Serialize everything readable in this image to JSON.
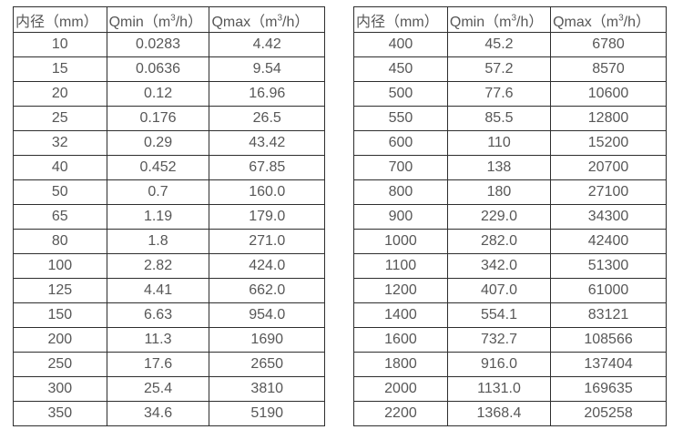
{
  "colors": {
    "background": "#ffffff",
    "border": "#2e2e2e",
    "text": "#575757"
  },
  "tables": [
    {
      "name": "flow-rate-table-small-diameters",
      "headers": {
        "diameter": "内径（mm）",
        "qmin_pre": "Qmin（m",
        "qmin_sup": "3",
        "qmin_post": "/h）",
        "qmax_pre": "Qmax（m",
        "qmax_sup": "3",
        "qmax_post": "/h）"
      },
      "rows": [
        [
          "10",
          "0.0283",
          "4.42"
        ],
        [
          "15",
          "0.0636",
          "9.54"
        ],
        [
          "20",
          "0.12",
          "16.96"
        ],
        [
          "25",
          "0.176",
          "26.5"
        ],
        [
          "32",
          "0.29",
          "43.42"
        ],
        [
          "40",
          "0.452",
          "67.85"
        ],
        [
          "50",
          "0.7",
          "160.0"
        ],
        [
          "65",
          "1.19",
          "179.0"
        ],
        [
          "80",
          "1.8",
          "271.0"
        ],
        [
          "100",
          "2.82",
          "424.0"
        ],
        [
          "125",
          "4.41",
          "662.0"
        ],
        [
          "150",
          "6.63",
          "954.0"
        ],
        [
          "200",
          "11.3",
          "1690"
        ],
        [
          "250",
          "17.6",
          "2650"
        ],
        [
          "300",
          "25.4",
          "3810"
        ],
        [
          "350",
          "34.6",
          "5190"
        ]
      ]
    },
    {
      "name": "flow-rate-table-large-diameters",
      "headers": {
        "diameter": "内径（mm）",
        "qmin_pre": "Qmin（m",
        "qmin_sup": "3",
        "qmin_post": "/h）",
        "qmax_pre": "Qmax（m",
        "qmax_sup": "3",
        "qmax_post": "/h）"
      },
      "rows": [
        [
          "400",
          "45.2",
          "6780"
        ],
        [
          "450",
          "57.2",
          "8570"
        ],
        [
          "500",
          "77.6",
          "10600"
        ],
        [
          "550",
          "85.5",
          "12800"
        ],
        [
          "600",
          "110",
          "15200"
        ],
        [
          "700",
          "138",
          "20700"
        ],
        [
          "800",
          "180",
          "27100"
        ],
        [
          "900",
          "229.0",
          "34300"
        ],
        [
          "1000",
          "282.0",
          "42400"
        ],
        [
          "1100",
          "342.0",
          "51300"
        ],
        [
          "1200",
          "407.0",
          "61000"
        ],
        [
          "1400",
          "554.1",
          "83121"
        ],
        [
          "1600",
          "732.7",
          "108566"
        ],
        [
          "1800",
          "916.0",
          "137404"
        ],
        [
          "2000",
          "1131.0",
          "169635"
        ],
        [
          "2200",
          "1368.4",
          "205258"
        ]
      ]
    }
  ]
}
